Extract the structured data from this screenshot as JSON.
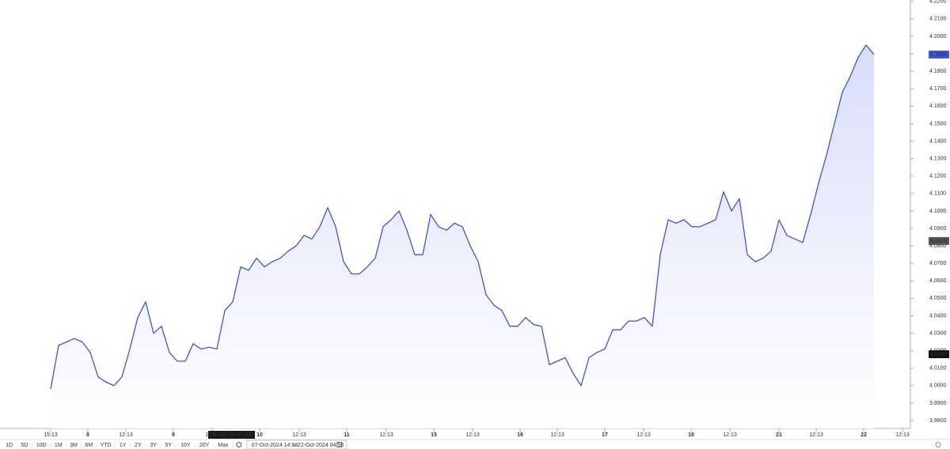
{
  "chart_data": {
    "type": "line",
    "series": [
      {
        "color": "#3f55d9",
        "fill": "#d9ddfa",
        "values": [
          3.998,
          4.023,
          4.025,
          4.027,
          4.025,
          4.019,
          4.005,
          4.002,
          4.0,
          4.005,
          4.021,
          4.039,
          4.048,
          4.03,
          4.034,
          4.019,
          4.014,
          4.014,
          4.024,
          4.021,
          4.022,
          4.021,
          4.043,
          4.048,
          4.068,
          4.066,
          4.073,
          4.068,
          4.071,
          4.073,
          4.077,
          4.08,
          4.086,
          4.084,
          4.091,
          4.102,
          4.091,
          4.071,
          4.064,
          4.064,
          4.068,
          4.073,
          4.091,
          4.095,
          4.1,
          4.089,
          4.075,
          4.075,
          4.098,
          4.091,
          4.089,
          4.093,
          4.091,
          4.08,
          4.071,
          4.052,
          4.046,
          4.043,
          4.034,
          4.034,
          4.039,
          4.035,
          4.034,
          4.012,
          4.014,
          4.016,
          4.007,
          4.0,
          4.016,
          4.019,
          4.021,
          4.032,
          4.032,
          4.037,
          4.037,
          4.039,
          4.034,
          4.075,
          4.095,
          4.093,
          4.095,
          4.091,
          4.091,
          4.093,
          4.095,
          4.111,
          4.1,
          4.107,
          4.075,
          4.071,
          4.073,
          4.077,
          4.095,
          4.086,
          4.084,
          4.082,
          4.098,
          4.116,
          4.132,
          4.15,
          4.168,
          4.177,
          4.188,
          4.195,
          4.1896
        ]
      }
    ],
    "xlim": [
      -6.4,
      108.6
    ],
    "xticks": [
      {
        "value": 0,
        "label": "15:13"
      },
      {
        "value": 4.7,
        "label": "8"
      },
      {
        "value": 9.5,
        "label": "12:13"
      },
      {
        "value": 15.5,
        "label": "9"
      },
      {
        "value": 20.4,
        "label": "12:13"
      },
      {
        "value": 26.4,
        "label": "10"
      },
      {
        "value": 31.4,
        "label": "12:13"
      },
      {
        "value": 37.4,
        "label": "11"
      },
      {
        "value": 42.4,
        "label": "12:13"
      },
      {
        "value": 48.4,
        "label": "15"
      },
      {
        "value": 53.3,
        "label": "12:13"
      },
      {
        "value": 59.3,
        "label": "16"
      },
      {
        "value": 64,
        "label": "12:13"
      },
      {
        "value": 70,
        "label": "17"
      },
      {
        "value": 74.9,
        "label": "12:13"
      },
      {
        "value": 80.9,
        "label": "18"
      },
      {
        "value": 85.8,
        "label": "12:13"
      },
      {
        "value": 92,
        "label": "21"
      },
      {
        "value": 96.7,
        "label": "12:13"
      },
      {
        "value": 102.7,
        "label": "22"
      },
      {
        "value": 107.6,
        "label": "12:13"
      }
    ],
    "ylim": [
      3.9755,
      4.2208
    ],
    "yticks": [
      {
        "value": 3.98,
        "label": "3.9800"
      },
      {
        "value": 3.99,
        "label": "3.9900"
      },
      {
        "value": 4.0,
        "label": "4.0000"
      },
      {
        "value": 4.01,
        "label": "4.0100"
      },
      {
        "value": 4.02,
        "label": "4.0200"
      },
      {
        "value": 4.03,
        "label": "4.0300"
      },
      {
        "value": 4.04,
        "label": "4.0400"
      },
      {
        "value": 4.05,
        "label": "4.0500"
      },
      {
        "value": 4.06,
        "label": "4.0600"
      },
      {
        "value": 4.07,
        "label": "4.0700"
      },
      {
        "value": 4.08,
        "label": "4.0800"
      },
      {
        "value": 4.09,
        "label": "4.0900"
      },
      {
        "value": 4.1,
        "label": "4.1000"
      },
      {
        "value": 4.11,
        "label": "4.1100"
      },
      {
        "value": 4.12,
        "label": "4.1200"
      },
      {
        "value": 4.13,
        "label": "4.1300"
      },
      {
        "value": 4.14,
        "label": "4.1400"
      },
      {
        "value": 4.15,
        "label": "4.1500"
      },
      {
        "value": 4.16,
        "label": "4.1600"
      },
      {
        "value": 4.17,
        "label": "4.1700"
      },
      {
        "value": 4.18,
        "label": "4.1800"
      },
      {
        "value": 4.19,
        "label": "4.1900"
      },
      {
        "value": 4.2,
        "label": "4.2000"
      },
      {
        "value": 4.21,
        "label": "4.2100"
      },
      {
        "value": 4.22,
        "label": "4.2200"
      }
    ],
    "grid": false,
    "price_labels": [
      {
        "value": 4.1896,
        "label": "4.1896",
        "color": "#3f55d9"
      },
      {
        "value": 4.0828,
        "label": "4.0828",
        "color": "#555555"
      },
      {
        "value": 4.018,
        "label": "4.0180",
        "color": "#111111"
      }
    ],
    "crosshair_label": {
      "value": 20.2,
      "label": "09 Oct '24  17:43"
    }
  },
  "toolbar": {
    "ranges": [
      "1D",
      "5D",
      "10D",
      "1M",
      "3M",
      "6M",
      "YTD",
      "1Y",
      "2Y",
      "3Y",
      "5Y",
      "10Y",
      "20Y",
      "Max"
    ],
    "date_from": "07-Oct-2024 14:58",
    "separator": "–",
    "date_to": "22-Oct-2024 04:58"
  }
}
